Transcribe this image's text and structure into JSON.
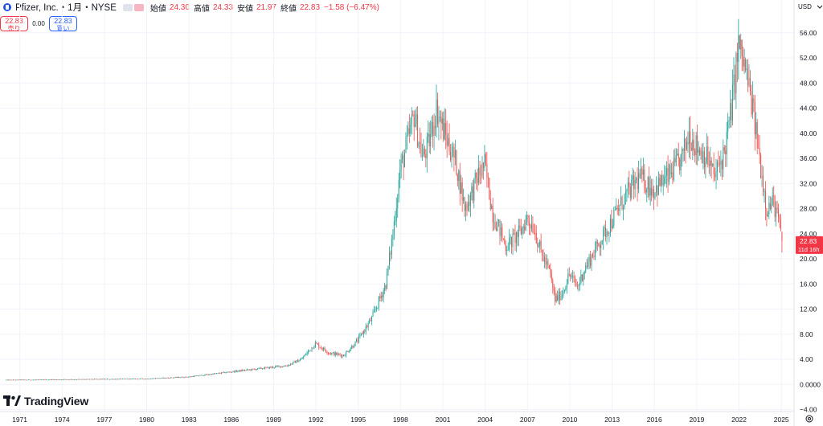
{
  "legend": {
    "title": "Pfizer, Inc.・1月・NYSE",
    "open_label": "始値",
    "open": "24.30",
    "high_label": "高値",
    "high": "24.33",
    "low_label": "安値",
    "low": "21.97",
    "close_label": "終値",
    "close": "22.83",
    "change": "−1.58 (−6.47%)"
  },
  "trade": {
    "sell_price": "22.83",
    "sell_label": "売り",
    "spread": "0.00",
    "buy_price": "22.83",
    "buy_label": "買い"
  },
  "logo_text": "TradingView",
  "colors": {
    "up": "#26a69a",
    "down": "#ef5350",
    "price_tag": "#f23645",
    "grid": "#f0f3fa"
  },
  "chart_data": {
    "type": "candlestick",
    "currency": "USD",
    "y_ticks": [
      "56.00",
      "52.00",
      "48.00",
      "44.00",
      "40.00",
      "36.00",
      "32.00",
      "28.00",
      "24.00",
      "20.00",
      "16.00",
      "12.00",
      "8.00",
      "4.00",
      "0.0000",
      "−4.00"
    ],
    "y_tick_values": [
      56,
      52,
      48,
      44,
      40,
      36,
      32,
      28,
      24,
      20,
      16,
      12,
      8,
      4,
      0,
      -4
    ],
    "x_ticks": [
      "1971",
      "1974",
      "1977",
      "1980",
      "1983",
      "1986",
      "1989",
      "1992",
      "1995",
      "1998",
      "2001",
      "2004",
      "2007",
      "2010",
      "2013",
      "2016",
      "2019",
      "2022",
      "2025"
    ],
    "x_tick_values": [
      1971,
      1974,
      1977,
      1980,
      1983,
      1986,
      1989,
      1992,
      1995,
      1998,
      2001,
      2004,
      2007,
      2010,
      2013,
      2016,
      2019,
      2022,
      2025
    ],
    "ylim": [
      -4,
      60
    ],
    "xlim": [
      1969.6,
      2025.9
    ],
    "last_price": "22.83",
    "countdown": "11d 16h",
    "trend": [
      [
        1970.0,
        0.7
      ],
      [
        1975.0,
        0.8
      ],
      [
        1980.0,
        0.9
      ],
      [
        1983.0,
        1.2
      ],
      [
        1986.0,
        2.0
      ],
      [
        1988.0,
        2.5
      ],
      [
        1990.0,
        3.0
      ],
      [
        1991.0,
        4.0
      ],
      [
        1992.0,
        6.5
      ],
      [
        1993.0,
        5.0
      ],
      [
        1994.0,
        4.6
      ],
      [
        1995.0,
        7.0
      ],
      [
        1996.0,
        10.5
      ],
      [
        1997.0,
        16.0
      ],
      [
        1997.5,
        24.0
      ],
      [
        1998.0,
        34.0
      ],
      [
        1998.7,
        40.0
      ],
      [
        1999.0,
        43.0
      ],
      [
        1999.6,
        36.0
      ],
      [
        2000.0,
        38.0
      ],
      [
        2000.6,
        44.0
      ],
      [
        2001.0,
        41.0
      ],
      [
        2002.0,
        35.0
      ],
      [
        2002.6,
        28.0
      ],
      [
        2003.0,
        30.0
      ],
      [
        2003.5,
        33.0
      ],
      [
        2004.0,
        35.0
      ],
      [
        2004.6,
        27.0
      ],
      [
        2005.0,
        25.0
      ],
      [
        2005.5,
        22.0
      ],
      [
        2006.0,
        23.0
      ],
      [
        2006.6,
        24.5
      ],
      [
        2007.0,
        26.5
      ],
      [
        2007.5,
        25.0
      ],
      [
        2008.0,
        21.0
      ],
      [
        2008.6,
        18.0
      ],
      [
        2009.0,
        13.5
      ],
      [
        2009.5,
        14.5
      ],
      [
        2010.0,
        17.5
      ],
      [
        2010.6,
        15.5
      ],
      [
        2011.0,
        18.0
      ],
      [
        2012.0,
        22.0
      ],
      [
        2013.0,
        26.0
      ],
      [
        2014.0,
        30.0
      ],
      [
        2015.0,
        33.0
      ],
      [
        2016.0,
        31.0
      ],
      [
        2017.0,
        33.0
      ],
      [
        2018.0,
        36.0
      ],
      [
        2018.5,
        40.0
      ],
      [
        2019.0,
        38.0
      ],
      [
        2019.8,
        36.0
      ],
      [
        2020.3,
        33.0
      ],
      [
        2021.0,
        37.0
      ],
      [
        2021.5,
        44.0
      ],
      [
        2022.0,
        54.0
      ],
      [
        2022.5,
        50.0
      ],
      [
        2023.0,
        44.0
      ],
      [
        2023.5,
        36.0
      ],
      [
        2024.0,
        28.0
      ],
      [
        2024.5,
        29.0
      ],
      [
        2025.0,
        24.5
      ]
    ]
  }
}
